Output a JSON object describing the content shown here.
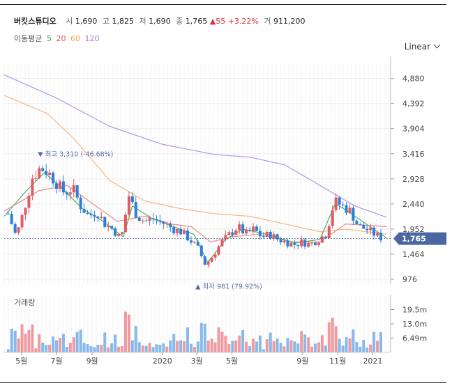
{
  "header": {
    "name": "버킷스튜디오",
    "open_label": "시",
    "open": "1,690",
    "high_label": "고",
    "high": "1,825",
    "low_label": "저",
    "low": "1,690",
    "close_label": "종",
    "close": "1,765",
    "change_arrow": "▲",
    "change": "55",
    "change_pct": "+3.22%",
    "volume_label": "거",
    "volume": "911,200"
  },
  "ma_legend": {
    "label": "이동평균",
    "periods": [
      {
        "value": "5",
        "color": "#2aa44a"
      },
      {
        "value": "20",
        "color": "#e05a5a"
      },
      {
        "value": "60",
        "color": "#f5a35c"
      },
      {
        "value": "120",
        "color": "#a87ce0"
      }
    ]
  },
  "scale_select": {
    "value": "Linear"
  },
  "volume_panel": {
    "label": "거래량"
  },
  "colors": {
    "up": "#e15b64",
    "down": "#2f7ed8",
    "up_vol": "#ef9aa0",
    "down_vol": "#86b9ec",
    "price_tag": "#4a67a3"
  },
  "chart_data": {
    "type": "candlestick",
    "y_ticks": [
      "4,880",
      "4,392",
      "3,904",
      "3,416",
      "2,928",
      "2,440",
      "1,952",
      "1,464",
      "976"
    ],
    "y_tick_values": [
      4880,
      4392,
      3904,
      3416,
      2928,
      2440,
      1952,
      1464,
      976
    ],
    "ylim": [
      880,
      5160
    ],
    "x_ticks": [
      "5월",
      "7월",
      "9월",
      "2020",
      "3월",
      "5월",
      "9월",
      "11월",
      "2021"
    ],
    "x_tick_dates": [
      "2019-05",
      "2019-07",
      "2019-09",
      "2020-01",
      "2020-03",
      "2020-05",
      "2020-09",
      "2020-11",
      "2021-01"
    ],
    "x_range": [
      "2019-04",
      "2021-02"
    ],
    "last_price_label": "1,765",
    "last_price": 1765,
    "high_annotation": {
      "text": "최고 3,310 (-46.68%)",
      "value": 3310,
      "date": "2019-06"
    },
    "low_annotation": {
      "text": "최저 981 (79.92%)",
      "value": 981,
      "date": "2020-03"
    },
    "volume_ticks": [
      "19.5m",
      "13.0m",
      "6.49m"
    ],
    "volume_tick_values": [
      19.5,
      13.0,
      6.49
    ],
    "volume_ylim": [
      0,
      26
    ],
    "close_path": [
      {
        "date": "2019-04-08",
        "close": 2250
      },
      {
        "date": "2019-04-22",
        "close": 1800
      },
      {
        "date": "2019-05-06",
        "close": 2350
      },
      {
        "date": "2019-05-20",
        "close": 2950
      },
      {
        "date": "2019-06-03",
        "close": 3150
      },
      {
        "date": "2019-06-17",
        "close": 3050
      },
      {
        "date": "2019-07-01",
        "close": 2850
      },
      {
        "date": "2019-07-15",
        "close": 2650
      },
      {
        "date": "2019-07-29",
        "close": 2750
      },
      {
        "date": "2019-08-12",
        "close": 2400
      },
      {
        "date": "2019-08-26",
        "close": 2200
      },
      {
        "date": "2019-09-09",
        "close": 2300
      },
      {
        "date": "2019-09-23",
        "close": 2050
      },
      {
        "date": "2019-10-07",
        "close": 1950
      },
      {
        "date": "2019-10-21",
        "close": 1750
      },
      {
        "date": "2019-11-04",
        "close": 2600
      },
      {
        "date": "2019-11-18",
        "close": 2200
      },
      {
        "date": "2019-12-02",
        "close": 2100
      },
      {
        "date": "2019-12-16",
        "close": 2150
      },
      {
        "date": "2020-01-06",
        "close": 2050
      },
      {
        "date": "2020-01-20",
        "close": 1950
      },
      {
        "date": "2020-02-03",
        "close": 1900
      },
      {
        "date": "2020-02-17",
        "close": 1750
      },
      {
        "date": "2020-03-02",
        "close": 1600
      },
      {
        "date": "2020-03-16",
        "close": 1250
      },
      {
        "date": "2020-03-30",
        "close": 1450
      },
      {
        "date": "2020-04-13",
        "close": 1700
      },
      {
        "date": "2020-04-27",
        "close": 1850
      },
      {
        "date": "2020-05-11",
        "close": 2000
      },
      {
        "date": "2020-05-25",
        "close": 1850
      },
      {
        "date": "2020-06-08",
        "close": 1950
      },
      {
        "date": "2020-06-22",
        "close": 1800
      },
      {
        "date": "2020-07-06",
        "close": 1850
      },
      {
        "date": "2020-07-20",
        "close": 1750
      },
      {
        "date": "2020-08-03",
        "close": 1700
      },
      {
        "date": "2020-08-17",
        "close": 1650
      },
      {
        "date": "2020-08-31",
        "close": 1700
      },
      {
        "date": "2020-09-14",
        "close": 1650
      },
      {
        "date": "2020-09-28",
        "close": 1750
      },
      {
        "date": "2020-10-12",
        "close": 1850
      },
      {
        "date": "2020-10-26",
        "close": 2500
      },
      {
        "date": "2020-11-09",
        "close": 2400
      },
      {
        "date": "2020-11-23",
        "close": 2300
      },
      {
        "date": "2020-12-07",
        "close": 2000
      },
      {
        "date": "2020-12-21",
        "close": 1950
      },
      {
        "date": "2021-01-04",
        "close": 1850
      },
      {
        "date": "2021-01-18",
        "close": 1765
      }
    ],
    "ma120": [
      {
        "date": "2019-04-01",
        "value": 4950
      },
      {
        "date": "2019-07-01",
        "value": 4500
      },
      {
        "date": "2019-10-01",
        "value": 3950
      },
      {
        "date": "2020-01-01",
        "value": 3600
      },
      {
        "date": "2020-04-01",
        "value": 3400
      },
      {
        "date": "2020-06-01",
        "value": 3350
      },
      {
        "date": "2020-08-01",
        "value": 3200
      },
      {
        "date": "2020-10-01",
        "value": 2800
      },
      {
        "date": "2020-12-01",
        "value": 2400
      },
      {
        "date": "2021-01-25",
        "value": 2180
      }
    ],
    "ma60": [
      {
        "date": "2019-04-01",
        "value": 4550
      },
      {
        "date": "2019-06-15",
        "value": 4200
      },
      {
        "date": "2019-08-01",
        "value": 3700
      },
      {
        "date": "2019-10-01",
        "value": 2900
      },
      {
        "date": "2019-12-01",
        "value": 2500
      },
      {
        "date": "2020-02-01",
        "value": 2350
      },
      {
        "date": "2020-04-01",
        "value": 2250
      },
      {
        "date": "2020-06-01",
        "value": 2200
      },
      {
        "date": "2020-08-01",
        "value": 2050
      },
      {
        "date": "2020-10-01",
        "value": 1900
      },
      {
        "date": "2020-11-15",
        "value": 1950
      },
      {
        "date": "2021-01-25",
        "value": 1850
      }
    ],
    "ma20": [
      {
        "date": "2019-04-01",
        "value": 2300
      },
      {
        "date": "2019-06-01",
        "value": 2700
      },
      {
        "date": "2019-07-20",
        "value": 2800
      },
      {
        "date": "2019-09-01",
        "value": 2450
      },
      {
        "date": "2019-10-15",
        "value": 2100
      },
      {
        "date": "2019-12-01",
        "value": 2200
      },
      {
        "date": "2020-01-15",
        "value": 2050
      },
      {
        "date": "2020-02-20",
        "value": 2000
      },
      {
        "date": "2020-03-25",
        "value": 1700
      },
      {
        "date": "2020-05-01",
        "value": 1800
      },
      {
        "date": "2020-06-15",
        "value": 1850
      },
      {
        "date": "2020-08-15",
        "value": 1700
      },
      {
        "date": "2020-10-01",
        "value": 1700
      },
      {
        "date": "2020-11-15",
        "value": 2050
      },
      {
        "date": "2021-01-25",
        "value": 2000
      }
    ],
    "ma5": [
      {
        "date": "2019-04-01",
        "value": 2200
      },
      {
        "date": "2019-05-10",
        "value": 2700
      },
      {
        "date": "2019-06-10",
        "value": 3050
      },
      {
        "date": "2019-07-10",
        "value": 2750
      },
      {
        "date": "2019-08-15",
        "value": 2350
      },
      {
        "date": "2019-09-20",
        "value": 2100
      },
      {
        "date": "2019-10-25",
        "value": 1800
      },
      {
        "date": "2019-11-10",
        "value": 2400
      },
      {
        "date": "2019-12-15",
        "value": 2150
      },
      {
        "date": "2020-01-20",
        "value": 2000
      },
      {
        "date": "2020-02-25",
        "value": 1850
      },
      {
        "date": "2020-03-20",
        "value": 1300
      },
      {
        "date": "2020-04-20",
        "value": 1750
      },
      {
        "date": "2020-05-20",
        "value": 1950
      },
      {
        "date": "2020-07-01",
        "value": 1850
      },
      {
        "date": "2020-08-20",
        "value": 1680
      },
      {
        "date": "2020-10-01",
        "value": 1750
      },
      {
        "date": "2020-10-28",
        "value": 2450
      },
      {
        "date": "2020-12-01",
        "value": 2200
      },
      {
        "date": "2021-01-25",
        "value": 1780
      }
    ]
  }
}
